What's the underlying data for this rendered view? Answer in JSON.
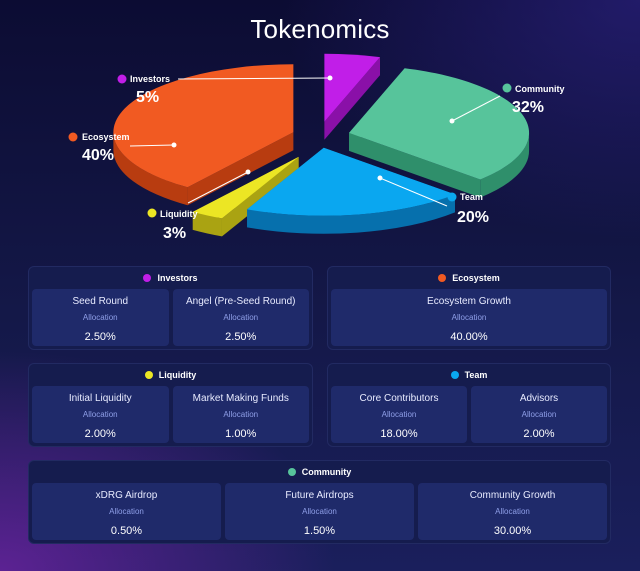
{
  "title": "Tokenomics",
  "chart_data": {
    "type": "pie",
    "title": "Tokenomics",
    "slices": [
      {
        "name": "Investors",
        "value": 5,
        "label": "5%",
        "color": "#c11ee8",
        "side": "#8a10a8"
      },
      {
        "name": "Community",
        "value": 32,
        "label": "32%",
        "color": "#57c49b",
        "side": "#2f8f6b"
      },
      {
        "name": "Team",
        "value": 20,
        "label": "20%",
        "color": "#0aa7f0",
        "side": "#0670ad"
      },
      {
        "name": "Liquidity",
        "value": 3,
        "label": "3%",
        "color": "#ece624",
        "side": "#aaa312"
      },
      {
        "name": "Ecosystem",
        "value": 40,
        "label": "40%",
        "color": "#f15a22",
        "side": "#b83c10"
      }
    ]
  },
  "panels": [
    {
      "name": "Investors",
      "color": "#c11ee8",
      "items": [
        {
          "name": "Seed Round",
          "sub": "Allocation",
          "value": "2.50%"
        },
        {
          "name": "Angel (Pre-Seed Round)",
          "sub": "Allocation",
          "value": "2.50%"
        }
      ]
    },
    {
      "name": "Ecosystem",
      "color": "#f15a22",
      "items": [
        {
          "name": "Ecosystem Growth",
          "sub": "Allocation",
          "value": "40.00%"
        }
      ]
    },
    {
      "name": "Liquidity",
      "color": "#ece624",
      "items": [
        {
          "name": "Initial Liquidity",
          "sub": "Allocation",
          "value": "2.00%"
        },
        {
          "name": "Market Making Funds",
          "sub": "Allocation",
          "value": "1.00%"
        }
      ]
    },
    {
      "name": "Team",
      "color": "#0aa7f0",
      "items": [
        {
          "name": "Core Contributors",
          "sub": "Allocation",
          "value": "18.00%"
        },
        {
          "name": "Advisors",
          "sub": "Allocation",
          "value": "2.00%"
        }
      ]
    },
    {
      "name": "Community",
      "color": "#57c49b",
      "items": [
        {
          "name": "xDRG Airdrop",
          "sub": "Allocation",
          "value": "0.50%"
        },
        {
          "name": "Future Airdrops",
          "sub": "Allocation",
          "value": "1.50%"
        },
        {
          "name": "Community Growth",
          "sub": "Allocation",
          "value": "30.00%"
        }
      ]
    }
  ]
}
